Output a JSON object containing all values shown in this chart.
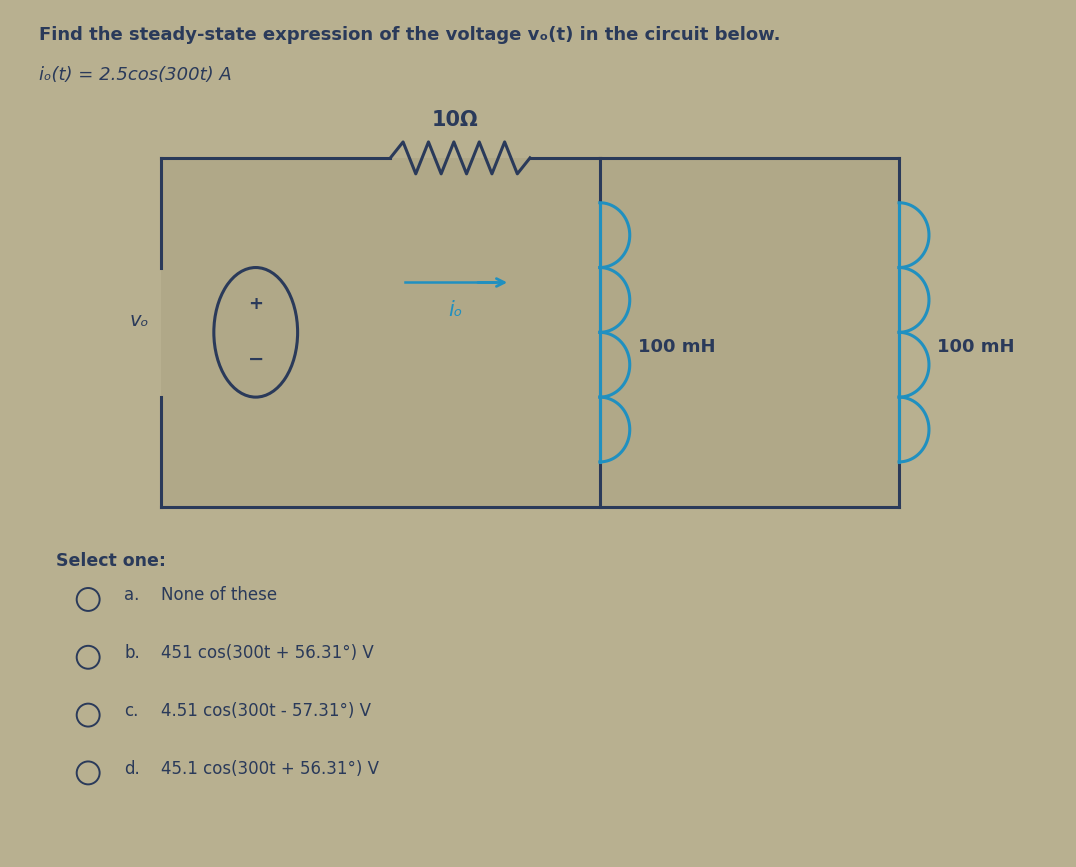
{
  "background_color": "#b8b090",
  "panel_color": "#c4bca0",
  "title_line1": "Find the steady-state expression of the voltage vₒ(t) in the circuit below.",
  "title_line2": "iₒ(t) = 2.5cos(300t) A",
  "resistor_label": "10Ω",
  "inductor1_label": "100 mH",
  "inductor2_label": "100 mH",
  "current_label": "iₒ",
  "vg_label": "vₒ",
  "select_one": "Select one:",
  "options": [
    [
      "a.",
      "None of these"
    ],
    [
      "b.",
      "451 cos(300t + 56.31°) V"
    ],
    [
      "c.",
      "4.51 cos(300t - 57.31°) V"
    ],
    [
      "d.",
      "45.1 cos(300t + 56.31°) V"
    ]
  ],
  "text_color": "#2a3a5a",
  "circuit_color": "#2a3a5a",
  "arrow_color": "#2090c0",
  "inductor_color": "#2090c0",
  "box_fill": "#b0a888"
}
